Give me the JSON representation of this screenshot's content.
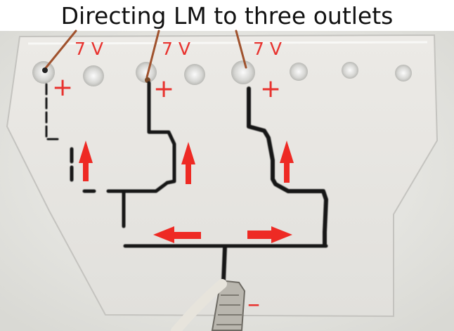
{
  "title": "Directing LM to three outlets",
  "voltage_labels": [
    "7 V",
    "7 V",
    "7 V"
  ],
  "positive_labels": [
    "+",
    "+",
    "+"
  ],
  "negative_label": "–",
  "colors": {
    "arrow": "#ee2a24",
    "label": "#e8322e",
    "metal": "#151515",
    "wire": "#a0522d",
    "plate": "#e6e6e1"
  }
}
